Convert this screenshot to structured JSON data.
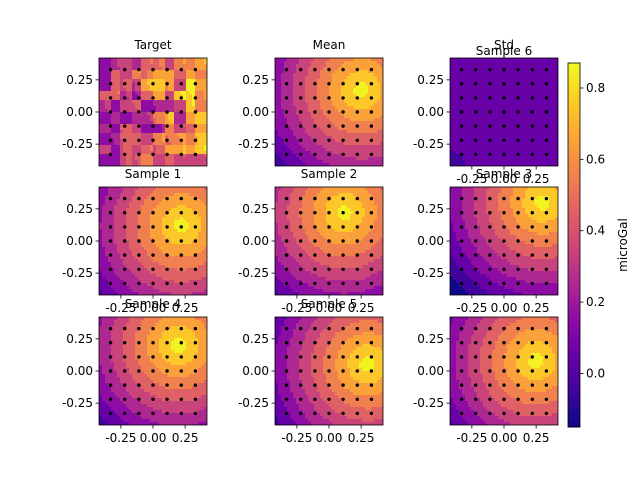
{
  "colormap": "plasma",
  "colorbar": {
    "label": "microGal",
    "range": [
      -0.15,
      0.87
    ],
    "ticks": [
      "0.0",
      "0.2",
      "0.4",
      "0.6",
      "0.8"
    ],
    "tick_values": [
      0.0,
      0.2,
      0.4,
      0.6,
      0.8
    ]
  },
  "chart_data": [
    {
      "type": "heatmap",
      "title": "Target",
      "pattern": "noisy",
      "show_xticks": false,
      "show_yticks": true
    },
    {
      "type": "heatmap",
      "title": "Mean",
      "pattern": "radial",
      "peak": [
        0.25,
        0.17
      ],
      "show_xticks": false,
      "show_yticks": true
    },
    {
      "type": "heatmap",
      "title": "Std",
      "overlay_title": "Sample 6",
      "pattern": "flat",
      "show_xticks": true,
      "show_yticks": true
    },
    {
      "type": "heatmap",
      "title": "Sample 1",
      "pattern": "radial",
      "peak": [
        0.22,
        0.12
      ],
      "show_xticks": true,
      "show_yticks": true
    },
    {
      "type": "heatmap",
      "title": "Sample 2",
      "pattern": "radial",
      "peak": [
        0.12,
        0.22
      ],
      "show_xticks": true,
      "show_yticks": true
    },
    {
      "type": "heatmap",
      "title": "Sample 3",
      "pattern": "radial",
      "peak": [
        0.3,
        0.3
      ],
      "show_xticks": true,
      "show_yticks": true
    },
    {
      "type": "heatmap",
      "title": "Sample 4",
      "pattern": "radial",
      "peak": [
        0.2,
        0.2
      ],
      "show_xticks": true,
      "show_yticks": true
    },
    {
      "type": "heatmap",
      "title": "Sample 5",
      "pattern": "radial",
      "peak": [
        0.3,
        0.05
      ],
      "show_xticks": true,
      "show_yticks": true
    },
    {
      "type": "heatmap",
      "title": "",
      "pattern": "radial",
      "peak": [
        0.25,
        0.08
      ],
      "show_xticks": true,
      "show_yticks": true
    }
  ],
  "axes": {
    "xlim": [
      -0.42,
      0.42
    ],
    "ylim": [
      -0.42,
      0.42
    ],
    "xticks": [
      "-0.25",
      "0.00",
      "0.25"
    ],
    "xtick_values": [
      -0.25,
      0.0,
      0.25
    ],
    "yticks": [
      "0.25",
      "0.00",
      "-0.25"
    ],
    "ytick_values": [
      0.25,
      0.0,
      -0.25
    ]
  },
  "stations": {
    "x": [
      -0.33,
      -0.22,
      -0.11,
      0.0,
      0.11,
      0.22,
      0.33
    ],
    "y": [
      0.33,
      0.22,
      0.11,
      0.0,
      -0.11,
      -0.22,
      -0.33
    ]
  }
}
